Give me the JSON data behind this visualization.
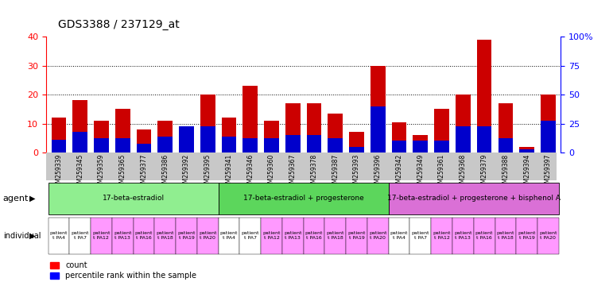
{
  "title": "GDS3388 / 237129_at",
  "gsm_ids": [
    "GSM259339",
    "GSM259345",
    "GSM259359",
    "GSM259365",
    "GSM259377",
    "GSM259386",
    "GSM259392",
    "GSM259395",
    "GSM259341",
    "GSM259346",
    "GSM259360",
    "GSM259367",
    "GSM259378",
    "GSM259387",
    "GSM259393",
    "GSM259396",
    "GSM259342",
    "GSM259349",
    "GSM259361",
    "GSM259368",
    "GSM259379",
    "GSM259388",
    "GSM259394",
    "GSM259397"
  ],
  "count_values": [
    12,
    18,
    11,
    15,
    8,
    11,
    8.5,
    20,
    12,
    23,
    11,
    17,
    17,
    13.5,
    7,
    30,
    10.5,
    6,
    15,
    20,
    39,
    17,
    2,
    20
  ],
  "percentile_values": [
    4.5,
    7,
    5,
    5,
    3,
    5.5,
    9,
    9,
    5.5,
    5,
    5,
    6,
    6,
    5,
    2,
    16,
    4,
    4,
    4,
    9,
    9,
    5,
    1,
    11
  ],
  "agents": [
    {
      "label": "17-beta-estradiol",
      "start": 0,
      "end": 8,
      "color": "#90EE90"
    },
    {
      "label": "17-beta-estradiol + progesterone",
      "start": 8,
      "end": 16,
      "color": "#5CD65C"
    },
    {
      "label": "17-beta-estradiol + progesterone + bisphenol A",
      "start": 16,
      "end": 24,
      "color": "#DA70D6"
    }
  ],
  "indiv_labels": [
    "PA4",
    "PA7",
    "PA12",
    "PA13",
    "PA16",
    "PA18",
    "PA19",
    "PA20"
  ],
  "indiv_color_alt": [
    "#FFFFFF",
    "#FF99FF"
  ],
  "bar_color": "#CC0000",
  "percentile_color": "#0000CC",
  "ylim_left": [
    0,
    40
  ],
  "ylim_right": [
    0,
    100
  ],
  "yticks_left": [
    0,
    10,
    20,
    30,
    40
  ],
  "ytick_labels_right": [
    "0",
    "25",
    "50",
    "75",
    "100%"
  ],
  "bar_width": 0.7,
  "xtick_bg": "#C8C8C8",
  "title_fontsize": 10
}
